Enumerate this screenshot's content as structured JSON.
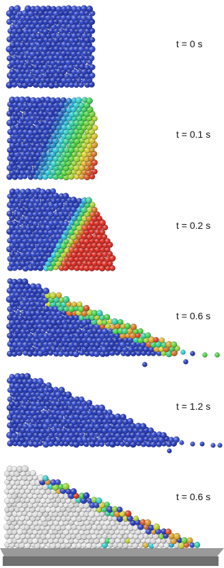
{
  "palette": {
    "particle_base": "#1a2fb0",
    "particle_base_light": "#3d58e0",
    "particle_cyan": "#27c9d9",
    "particle_green": "#3fcf3a",
    "particle_yellow": "#d9d22a",
    "particle_red": "#d8241b",
    "particle_white": "#e8e8e8",
    "floor": "#8a8a8a"
  },
  "frames": [
    {
      "label": "t = 0 s",
      "state": "initial-column"
    },
    {
      "label": "t = 0.1 s",
      "state": "collapse-start"
    },
    {
      "label": "t = 0.2 s",
      "state": "collapse-mid"
    },
    {
      "label": "t = 0.6 s",
      "state": "spreading"
    },
    {
      "label": "t = 1.2 s",
      "state": "final-deposit"
    },
    {
      "label": "t = 0.6 s",
      "state": "spreading-cut-view"
    }
  ]
}
